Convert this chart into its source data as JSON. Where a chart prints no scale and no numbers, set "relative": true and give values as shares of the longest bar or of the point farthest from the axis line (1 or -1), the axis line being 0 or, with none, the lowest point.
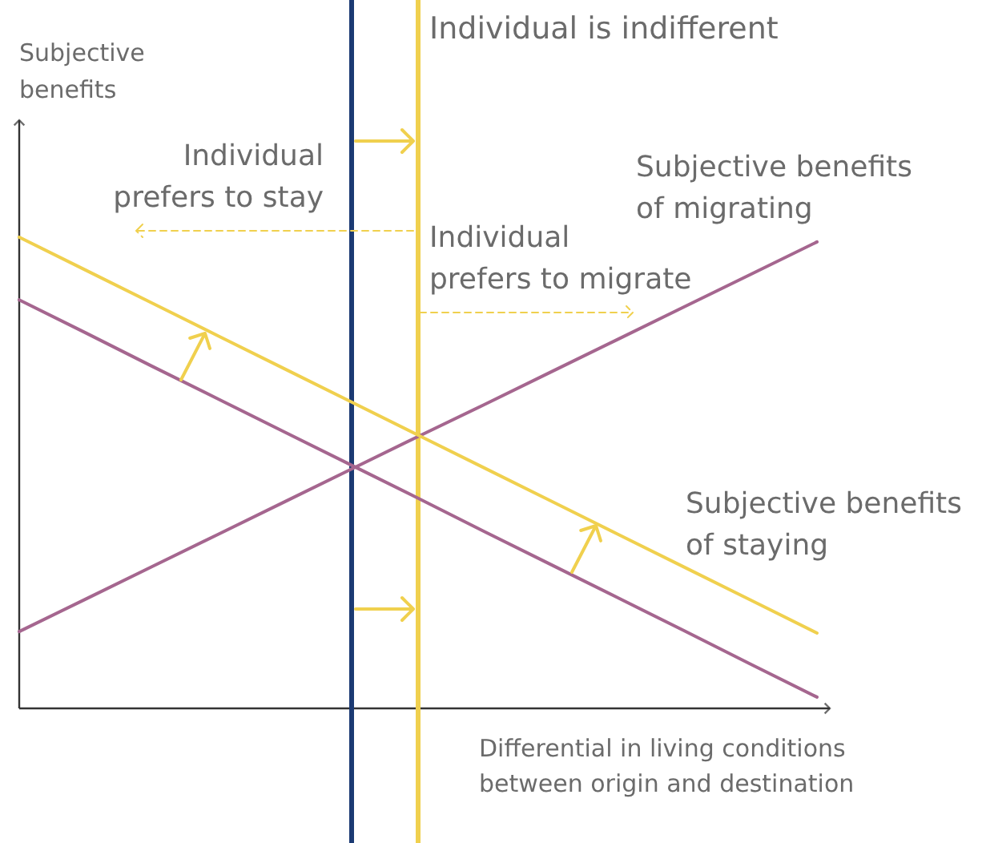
{
  "chart_data": {
    "type": "line",
    "relative": true,
    "xlabel": "Differential in living conditions between origin and destination",
    "categories": [
      null,
      null,
      null,
      null,
      null,
      null,
      null,
      null,
      null,
      null,
      null,
      null,
      null
    ],
    "series": [
      {
        "color": "#a5668f",
        "values": [
          0.867,
          0.797,
          0.726,
          0.656,
          0.586,
          0.516,
          0.446,
          0.375,
          0.305,
          0.235,
          0.165,
          0.094,
          0.024
        ]
      },
      {
        "name": "Subjective benefits of migrating",
        "color": "#a5668f",
        "values": [
          0.163,
          0.232,
          0.301,
          0.37,
          0.439,
          0.508,
          0.577,
          0.645,
          0.714,
          0.783,
          0.852,
          0.921,
          0.99
        ]
      },
      {
        "name": "Subjective benefits of staying",
        "color": "#f0d04e",
        "values": [
          1.0,
          0.93,
          0.86,
          0.79,
          0.72,
          0.65,
          0.58,
          0.51,
          0.44,
          0.37,
          0.3,
          0.23,
          0.16
        ]
      }
    ],
    "annotations": [
      "Subjective benefits",
      "Individual is indifferent",
      "Individual prefers to stay",
      "Individual prefers to migrate"
    ]
  }
}
